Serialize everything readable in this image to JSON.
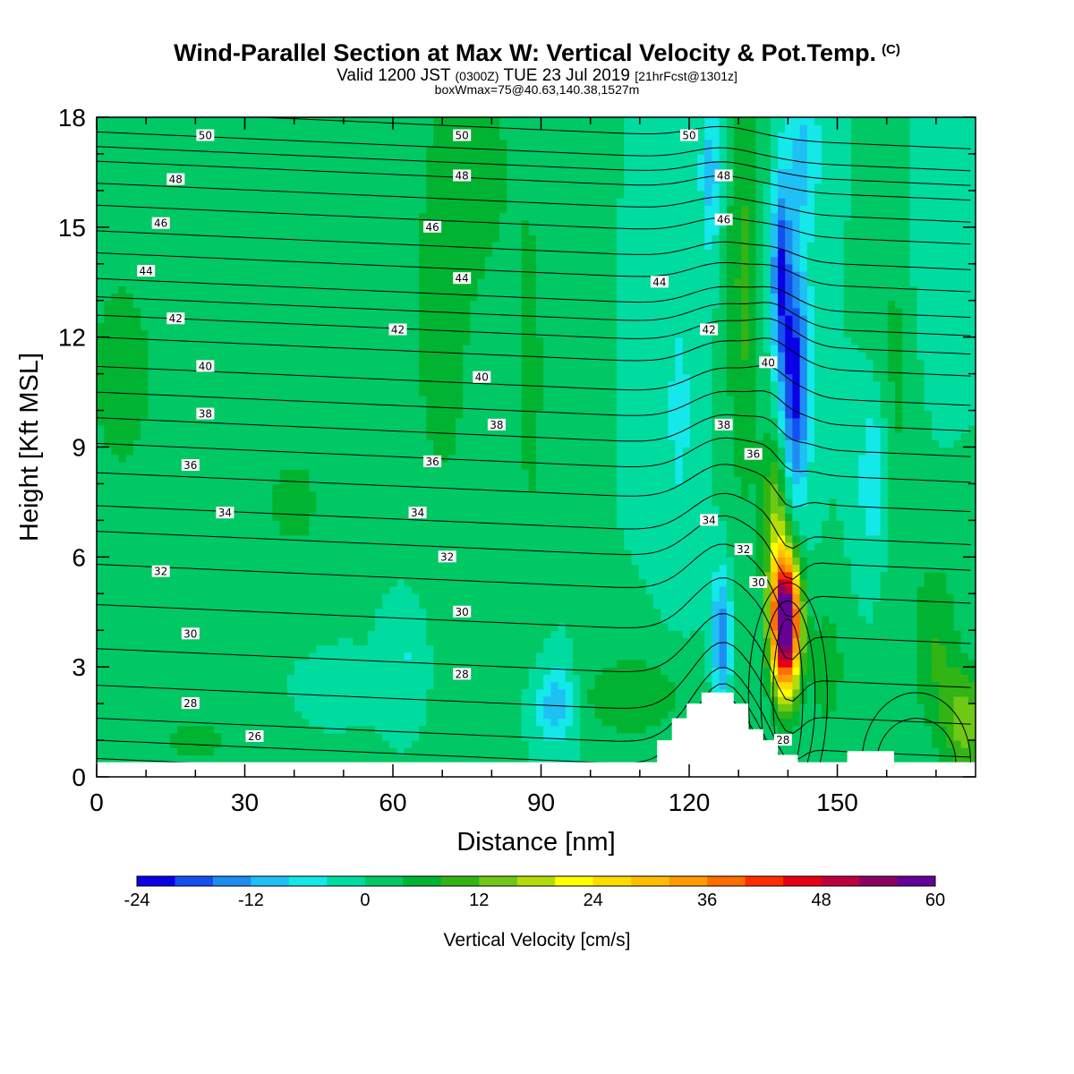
{
  "header": {
    "title": "Wind-Parallel Section at Max W: Vertical Velocity & Pot.Temp.",
    "title_mark": "(C)",
    "subtitle_main": "Valid 1200 JST",
    "subtitle_utc": "(0300Z)",
    "subtitle_date": "TUE 23 Jul 2019",
    "subtitle_fcst": "[21hrFcst@1301z]",
    "box_info": "boxWmax=75@40.63,140.38,1527m"
  },
  "chart_data": {
    "type": "heatmap",
    "title": "Wind-Parallel Section at Max W: Vertical Velocity & Pot.Temp.",
    "xlabel": "Distance [nm]",
    "ylabel": "Height [Kft MSL]",
    "xlim": [
      0,
      178
    ],
    "ylim": [
      0,
      18
    ],
    "xticks": [
      0,
      30,
      60,
      90,
      120,
      150
    ],
    "yticks": [
      0,
      3,
      6,
      9,
      12,
      15,
      18
    ],
    "colorbar": {
      "label": "Vertical Velocity [cm/s]",
      "min": -24,
      "max": 68,
      "step": 4,
      "tick_labels": [
        -24,
        -12,
        0,
        12,
        24,
        36,
        48,
        60
      ],
      "colors": [
        "#0a00e6",
        "#1450f0",
        "#1e8cf0",
        "#1ec0f5",
        "#14e8e8",
        "#00dca0",
        "#00c864",
        "#00b432",
        "#32b414",
        "#6ec814",
        "#b4dc0a",
        "#ffff00",
        "#ffdc00",
        "#ffbe00",
        "#ff9b00",
        "#ff6e00",
        "#ff2d00",
        "#e60014",
        "#be003c",
        "#8c0064",
        "#640096"
      ]
    },
    "background_value": 0,
    "vertical_velocity_features": [
      {
        "x": 139.5,
        "y": 4.2,
        "sx": 2.0,
        "sy": 1.3,
        "value": 68
      },
      {
        "x": 137.5,
        "y": 7.2,
        "sx": 2.0,
        "sy": 1.5,
        "value": 14
      },
      {
        "x": 141.5,
        "y": 10.8,
        "sx": 2.0,
        "sy": 2.3,
        "value": -22
      },
      {
        "x": 138.5,
        "y": 13.8,
        "sx": 1.4,
        "sy": 1.8,
        "value": -18
      },
      {
        "x": 131.0,
        "y": 13.5,
        "sx": 2.5,
        "sy": 4.5,
        "value": 9
      },
      {
        "x": 143.0,
        "y": 17.0,
        "sx": 2.6,
        "sy": 1.6,
        "value": -9
      },
      {
        "x": 126.5,
        "y": 3.8,
        "sx": 1.3,
        "sy": 1.3,
        "value": -16
      },
      {
        "x": 124.5,
        "y": 16.5,
        "sx": 1.6,
        "sy": 1.6,
        "value": -10
      },
      {
        "x": 93.0,
        "y": 2.0,
        "sx": 3.0,
        "sy": 0.8,
        "value": -12
      },
      {
        "x": 63.0,
        "y": 3.4,
        "sx": 3.0,
        "sy": 1.2,
        "value": -5
      },
      {
        "x": 51.0,
        "y": 2.6,
        "sx": 4.0,
        "sy": 0.4,
        "value": -4
      },
      {
        "x": 108.0,
        "y": 2.2,
        "sx": 9.0,
        "sy": 0.9,
        "value": 7
      },
      {
        "x": 88.0,
        "y": 11.0,
        "sx": 2.6,
        "sy": 4.5,
        "value": 5
      },
      {
        "x": 70.0,
        "y": 12.5,
        "sx": 7.0,
        "sy": 6.0,
        "value": 5
      },
      {
        "x": 118.0,
        "y": 10.0,
        "sx": 2.5,
        "sy": 3.0,
        "value": -5
      },
      {
        "x": 157.5,
        "y": 8.2,
        "sx": 2.2,
        "sy": 1.5,
        "value": -9
      },
      {
        "x": 170.0,
        "y": 3.5,
        "sx": 3.5,
        "sy": 1.8,
        "value": 8
      },
      {
        "x": 176.0,
        "y": 1.5,
        "sx": 3.0,
        "sy": 1.0,
        "value": 14
      },
      {
        "x": 148.0,
        "y": 3.0,
        "sx": 2.5,
        "sy": 1.3,
        "value": 7
      },
      {
        "x": 162.0,
        "y": 11.0,
        "sx": 3.0,
        "sy": 4.0,
        "value": 5
      },
      {
        "x": 168.0,
        "y": 15.0,
        "sx": 3.0,
        "sy": 2.5,
        "value": -4
      },
      {
        "x": 5.0,
        "y": 11.0,
        "sx": 8.0,
        "sy": 3.5,
        "value": 5
      },
      {
        "x": 40.0,
        "y": 7.5,
        "sx": 6.0,
        "sy": 1.5,
        "value": 5
      },
      {
        "x": 20.0,
        "y": 1.0,
        "sx": 7.0,
        "sy": 0.6,
        "value": 5
      },
      {
        "x": 78.0,
        "y": 16.5,
        "sx": 5.0,
        "sy": 1.8,
        "value": 5
      }
    ],
    "theta_contours": {
      "levels": [
        26,
        27,
        28,
        29,
        30,
        31,
        32,
        33,
        34,
        35,
        36,
        37,
        38,
        39,
        40,
        41,
        42,
        43,
        44,
        45,
        46,
        47,
        48,
        49,
        50,
        51
      ],
      "base_heights_kft": [
        0.5,
        1.0,
        1.6,
        2.5,
        3.5,
        4.7,
        5.8,
        6.7,
        7.4,
        8.3,
        9.1,
        9.8,
        10.5,
        11.2,
        12.0,
        12.6,
        13.1,
        13.6,
        14.3,
        14.9,
        15.6,
        16.2,
        16.8,
        17.2,
        17.6,
        18.2
      ],
      "labels": [
        {
          "x": 22,
          "y": 17.5,
          "text": "50"
        },
        {
          "x": 74,
          "y": 17.5,
          "text": "50"
        },
        {
          "x": 120,
          "y": 17.5,
          "text": "50"
        },
        {
          "x": 16,
          "y": 16.3,
          "text": "48"
        },
        {
          "x": 74,
          "y": 16.4,
          "text": "48"
        },
        {
          "x": 127,
          "y": 16.4,
          "text": "48"
        },
        {
          "x": 13,
          "y": 15.1,
          "text": "46"
        },
        {
          "x": 68,
          "y": 15.0,
          "text": "46"
        },
        {
          "x": 127,
          "y": 15.2,
          "text": "46"
        },
        {
          "x": 10,
          "y": 13.8,
          "text": "44"
        },
        {
          "x": 74,
          "y": 13.6,
          "text": "44"
        },
        {
          "x": 114,
          "y": 13.5,
          "text": "44"
        },
        {
          "x": 16,
          "y": 12.5,
          "text": "42"
        },
        {
          "x": 61,
          "y": 12.2,
          "text": "42"
        },
        {
          "x": 124,
          "y": 12.2,
          "text": "42"
        },
        {
          "x": 22,
          "y": 11.2,
          "text": "40"
        },
        {
          "x": 78,
          "y": 10.9,
          "text": "40"
        },
        {
          "x": 136,
          "y": 11.3,
          "text": "40"
        },
        {
          "x": 22,
          "y": 9.9,
          "text": "38"
        },
        {
          "x": 81,
          "y": 9.6,
          "text": "38"
        },
        {
          "x": 127,
          "y": 9.6,
          "text": "38"
        },
        {
          "x": 19,
          "y": 8.5,
          "text": "36"
        },
        {
          "x": 68,
          "y": 8.6,
          "text": "36"
        },
        {
          "x": 133,
          "y": 8.8,
          "text": "36"
        },
        {
          "x": 26,
          "y": 7.2,
          "text": "34"
        },
        {
          "x": 65,
          "y": 7.2,
          "text": "34"
        },
        {
          "x": 124,
          "y": 7.0,
          "text": "34"
        },
        {
          "x": 13,
          "y": 5.6,
          "text": "32"
        },
        {
          "x": 71,
          "y": 6.0,
          "text": "32"
        },
        {
          "x": 131,
          "y": 6.2,
          "text": "32"
        },
        {
          "x": 19,
          "y": 3.9,
          "text": "30"
        },
        {
          "x": 74,
          "y": 4.5,
          "text": "30"
        },
        {
          "x": 134,
          "y": 5.3,
          "text": "30"
        },
        {
          "x": 19,
          "y": 2.0,
          "text": "28"
        },
        {
          "x": 74,
          "y": 2.8,
          "text": "28"
        },
        {
          "x": 139,
          "y": 1.0,
          "text": "28"
        },
        {
          "x": 32,
          "y": 1.1,
          "text": "26"
        }
      ]
    },
    "terrain_profile": [
      {
        "x": 0,
        "h": 0.4
      },
      {
        "x": 113.5,
        "h": 0.4
      },
      {
        "x": 113.5,
        "h": 1.0
      },
      {
        "x": 116.5,
        "h": 1.0
      },
      {
        "x": 116.5,
        "h": 1.6
      },
      {
        "x": 119.5,
        "h": 1.6
      },
      {
        "x": 119.5,
        "h": 2.0
      },
      {
        "x": 122.5,
        "h": 2.0
      },
      {
        "x": 122.5,
        "h": 2.3
      },
      {
        "x": 129,
        "h": 2.3
      },
      {
        "x": 129,
        "h": 2.0
      },
      {
        "x": 132,
        "h": 2.0
      },
      {
        "x": 132,
        "h": 1.3
      },
      {
        "x": 135,
        "h": 1.3
      },
      {
        "x": 135,
        "h": 1.0
      },
      {
        "x": 138,
        "h": 1.0
      },
      {
        "x": 138,
        "h": 0.6
      },
      {
        "x": 142,
        "h": 0.6
      },
      {
        "x": 142,
        "h": 0.4
      },
      {
        "x": 152,
        "h": 0.4
      },
      {
        "x": 152,
        "h": 0.7
      },
      {
        "x": 161.5,
        "h": 0.7
      },
      {
        "x": 161.5,
        "h": 0.4
      },
      {
        "x": 178,
        "h": 0.4
      }
    ],
    "terrain_ridge": {
      "x": 126,
      "h": 2.3
    }
  }
}
